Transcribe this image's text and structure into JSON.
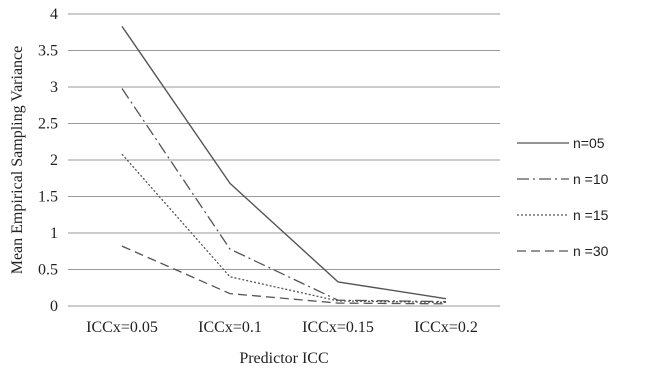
{
  "chart_data": {
    "type": "line",
    "title": "",
    "xlabel": "Predictor ICC",
    "ylabel": "Mean Empirical Sampling Variance",
    "categories": [
      "ICCx=0.05",
      "ICCx=0.1",
      "ICCx=0.15",
      "ICCx=0.2"
    ],
    "ylim": [
      0,
      4
    ],
    "yticks": [
      "0",
      "0.5",
      "1",
      "1.5",
      "2",
      "2.5",
      "3",
      "3.5",
      "4"
    ],
    "grid": true,
    "legend_position": "right",
    "series": [
      {
        "name": "n=05",
        "values": [
          3.83,
          1.68,
          0.33,
          0.1
        ],
        "color": "#555555",
        "dash": "solid"
      },
      {
        "name": "n =10",
        "values": [
          2.98,
          0.78,
          0.08,
          0.06
        ],
        "color": "#555555",
        "dash": "dashdot"
      },
      {
        "name": "n =15",
        "values": [
          2.08,
          0.4,
          0.07,
          0.05
        ],
        "color": "#555555",
        "dash": "dotted"
      },
      {
        "name": "n =30",
        "values": [
          0.82,
          0.17,
          0.04,
          0.03
        ],
        "color": "#555555",
        "dash": "dashed"
      }
    ]
  }
}
